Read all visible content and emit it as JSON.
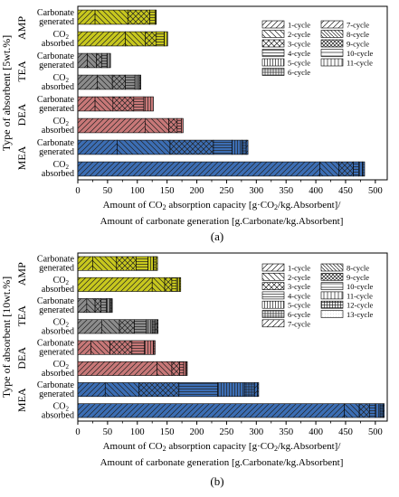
{
  "chart_data": [
    {
      "type": "bar",
      "orientation": "horizontal",
      "stacked": true,
      "panel_label": "(a)",
      "ylabel": "Type of absorbent [5wt.%]",
      "xlabel_line1_pre": "Amount of CO",
      "xlabel_line1_sub": "2",
      "xlabel_line1_mid": " absorption capacity [g·CO",
      "xlabel_line1_sub2": "2",
      "xlabel_line1_post": "/kg.Absorbent]/",
      "xlabel_line2": "Amount of carbonate generation [g.Carbonate/kg.Absorbent]",
      "xlim": [
        0,
        520
      ],
      "xticks": [
        "0",
        "50",
        "100",
        "150",
        "200",
        "250",
        "300",
        "350",
        "400",
        "450",
        "500"
      ],
      "groups": [
        "AMP",
        "TEA",
        "DEA",
        "MEA"
      ],
      "bar_labels": {
        "carbonate": [
          "Carbonate",
          "generated"
        ],
        "co2": [
          "CO",
          "2",
          "absorbed"
        ]
      },
      "bars": [
        {
          "group": "AMP",
          "kind": "carbonate",
          "color": "#c8c81e",
          "segments": [
            29,
            55,
            37,
            9,
            2
          ]
        },
        {
          "group": "AMP",
          "kind": "co2",
          "color": "#c8c81e",
          "segments": [
            80,
            33,
            19,
            13,
            6
          ]
        },
        {
          "group": "TEA",
          "kind": "carbonate",
          "color": "#8c8c8c",
          "segments": [
            16,
            15,
            9,
            9,
            6
          ]
        },
        {
          "group": "TEA",
          "kind": "co2",
          "color": "#8c8c8c",
          "segments": [
            33,
            25,
            22,
            16,
            7,
            3
          ]
        },
        {
          "group": "DEA",
          "kind": "carbonate",
          "color": "#c87878",
          "segments": [
            29,
            30,
            35,
            17,
            16
          ]
        },
        {
          "group": "DEA",
          "kind": "co2",
          "color": "#c87878",
          "segments": [
            113,
            40,
            14,
            7,
            3
          ]
        },
        {
          "group": "MEA",
          "kind": "carbonate",
          "color": "#3c6eb4",
          "segments": [
            66,
            89,
            73,
            31,
            17,
            7,
            3
          ]
        },
        {
          "group": "MEA",
          "kind": "co2",
          "color": "#3c6eb4",
          "segments": [
            407,
            32,
            24,
            9,
            6,
            4
          ]
        }
      ],
      "legend": {
        "placement": "top-right",
        "entries": [
          "1-cycle",
          "2-cycle",
          "3-cycle",
          "4-cycle",
          "5-cycle",
          "6-cycle",
          "7-cycle",
          "8-cycle",
          "9-cycle",
          "10-cycle",
          "11-cycle"
        ]
      }
    },
    {
      "type": "bar",
      "orientation": "horizontal",
      "stacked": true,
      "panel_label": "(b)",
      "ylabel": "Type of absorbent [10wt.%]",
      "xlabel_line1_pre": "Amount of CO",
      "xlabel_line1_sub": "2",
      "xlabel_line1_mid": " absorption capacity [g·CO",
      "xlabel_line1_sub2": "2",
      "xlabel_line1_post": "/kg.Absorbent]/",
      "xlabel_line2": "Amount of carbonate generation [g.Carbonate/kg.Absorbent]",
      "xlim": [
        0,
        520
      ],
      "xticks": [
        "0",
        "50",
        "100",
        "150",
        "200",
        "250",
        "300",
        "350",
        "400",
        "450",
        "500"
      ],
      "groups": [
        "AMP",
        "TEA",
        "DEA",
        "MEA"
      ],
      "bar_labels": {
        "carbonate": [
          "Carbonate",
          "generated"
        ],
        "co2": [
          "CO",
          "2",
          "absorbed"
        ]
      },
      "bars": [
        {
          "group": "AMP",
          "kind": "carbonate",
          "color": "#c8c81e",
          "segments": [
            25,
            40,
            33,
            20,
            9,
            5,
            2
          ]
        },
        {
          "group": "AMP",
          "kind": "co2",
          "color": "#c8c81e",
          "segments": [
            125,
            21,
            12,
            8,
            5,
            2
          ]
        },
        {
          "group": "TEA",
          "kind": "carbonate",
          "color": "#8c8c8c",
          "segments": [
            15,
            14,
            10,
            9,
            6,
            3,
            1
          ]
        },
        {
          "group": "TEA",
          "kind": "co2",
          "color": "#8c8c8c",
          "segments": [
            40,
            30,
            25,
            20,
            10,
            5,
            3,
            2
          ]
        },
        {
          "group": "DEA",
          "kind": "carbonate",
          "color": "#c87878",
          "segments": [
            22,
            32,
            37,
            21,
            15,
            3
          ]
        },
        {
          "group": "DEA",
          "kind": "co2",
          "color": "#c87878",
          "segments": [
            133,
            25,
            13,
            7,
            4,
            2
          ]
        },
        {
          "group": "MEA",
          "kind": "carbonate",
          "color": "#3c6eb4",
          "segments": [
            46,
            57,
            67,
            65,
            45,
            17,
            5,
            2
          ]
        },
        {
          "group": "MEA",
          "kind": "co2",
          "color": "#3c6eb4",
          "segments": [
            448,
            25,
            17,
            10,
            8,
            5,
            2
          ]
        }
      ],
      "legend": {
        "placement": "top-right",
        "entries": [
          "1-cycle",
          "2-cycle",
          "3-cycle",
          "4-cycle",
          "5-cycle",
          "6-cycle",
          "7-cycle",
          "8-cycle",
          "9-cycle",
          "10-cycle",
          "11-cycle",
          "12-cycle",
          "13-cycle"
        ]
      }
    }
  ]
}
